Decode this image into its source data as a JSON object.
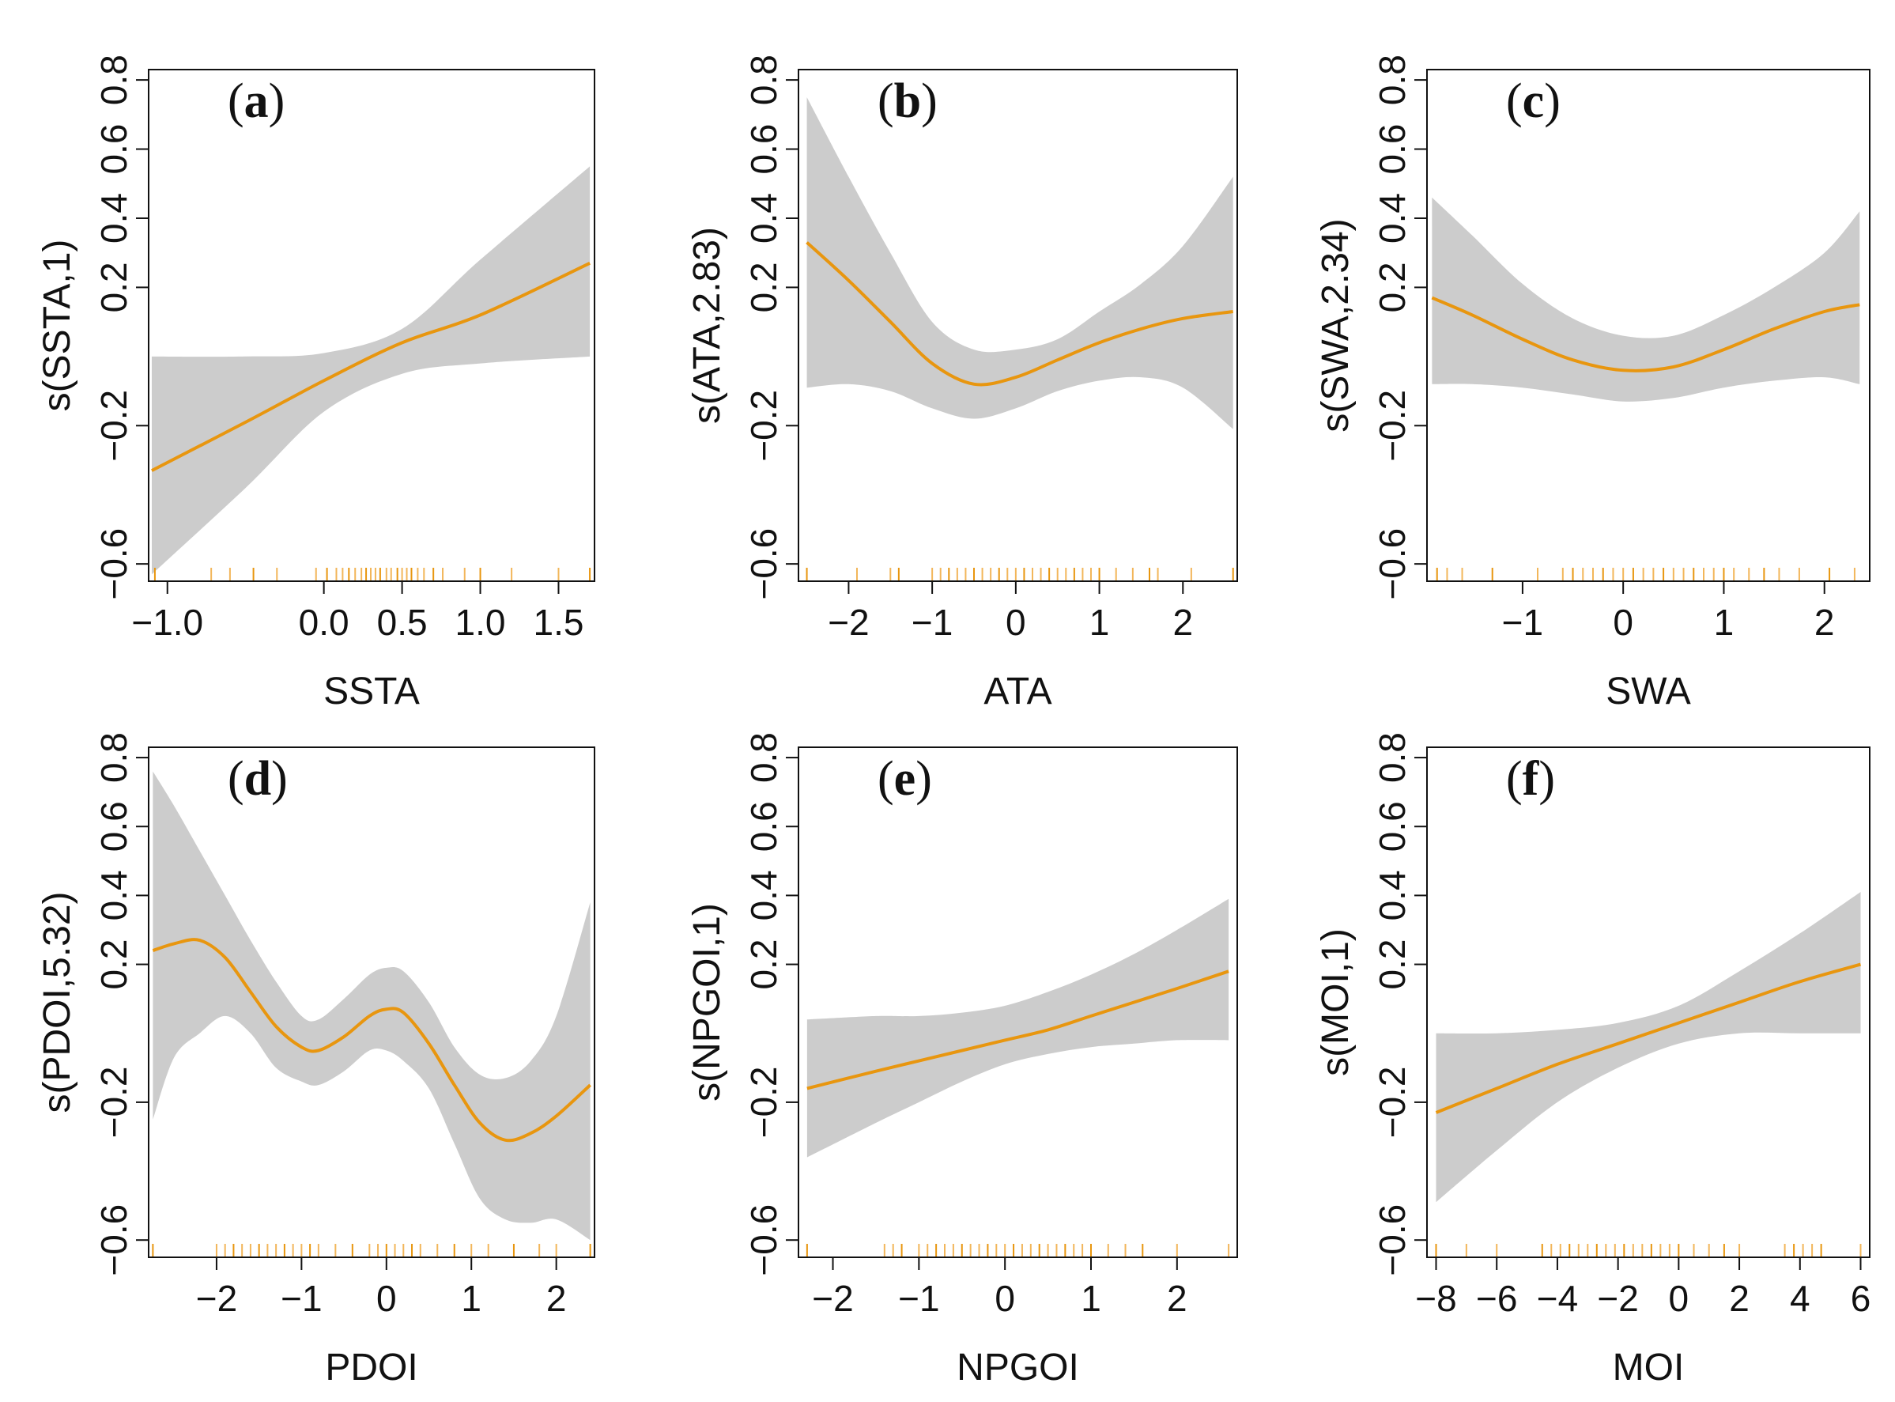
{
  "chart_data": [
    {
      "type": "line",
      "panel": "a",
      "xlabel": "SSTA",
      "ylabel": "s(SSTA,1)",
      "xlim": [
        -1.12,
        1.73
      ],
      "ylim": [
        -0.65,
        0.83
      ],
      "xticks": [
        -1.0,
        0.0,
        0.5,
        1.0,
        1.5
      ],
      "xtick_labels": [
        "−1.0",
        "0.0",
        "0.5",
        "1.0",
        "1.5"
      ],
      "yticks": [
        -0.6,
        -0.2,
        0.2,
        0.4,
        0.6,
        0.8
      ],
      "ytick_labels": [
        "−0.6",
        "−0.2",
        "0.2",
        "0.4",
        "0.6",
        "0.8"
      ],
      "line_color": "#e8960f",
      "band_color": "#cccccc",
      "x": [
        -1.1,
        -0.5,
        0.0,
        0.5,
        1.0,
        1.7
      ],
      "fit": [
        -0.33,
        -0.19,
        -0.07,
        0.04,
        0.12,
        0.27
      ],
      "upper": [
        0.0,
        0.0,
        0.01,
        0.08,
        0.28,
        0.55
      ],
      "lower": [
        -0.63,
        -0.38,
        -0.16,
        -0.05,
        -0.02,
        0.0
      ],
      "rug": [
        -1.08,
        -0.72,
        -0.6,
        -0.45,
        -0.3,
        -0.05,
        0.02,
        0.08,
        0.12,
        0.16,
        0.2,
        0.24,
        0.27,
        0.3,
        0.33,
        0.36,
        0.4,
        0.43,
        0.47,
        0.5,
        0.53,
        0.56,
        0.6,
        0.64,
        0.7,
        0.76,
        0.9,
        1.0,
        1.2,
        1.5,
        1.7
      ]
    },
    {
      "type": "line",
      "panel": "b",
      "xlabel": "ATA",
      "ylabel": "s(ATA,2.83)",
      "xlim": [
        -2.6,
        2.65
      ],
      "ylim": [
        -0.65,
        0.83
      ],
      "xticks": [
        -2,
        -1,
        0,
        1,
        2
      ],
      "xtick_labels": [
        "−2",
        "−1",
        "0",
        "1",
        "2"
      ],
      "yticks": [
        -0.6,
        -0.2,
        0.2,
        0.4,
        0.6,
        0.8
      ],
      "ytick_labels": [
        "−0.6",
        "−0.2",
        "0.2",
        "0.4",
        "0.6",
        "0.8"
      ],
      "line_color": "#e8960f",
      "band_color": "#cccccc",
      "x": [
        -2.5,
        -2.0,
        -1.5,
        -1.0,
        -0.5,
        0.0,
        0.5,
        1.0,
        1.5,
        2.0,
        2.6
      ],
      "fit": [
        0.33,
        0.22,
        0.1,
        -0.02,
        -0.08,
        -0.06,
        -0.01,
        0.04,
        0.08,
        0.11,
        0.13
      ],
      "upper": [
        0.75,
        0.52,
        0.3,
        0.1,
        0.02,
        0.02,
        0.05,
        0.13,
        0.21,
        0.32,
        0.52
      ],
      "lower": [
        -0.09,
        -0.08,
        -0.1,
        -0.15,
        -0.18,
        -0.15,
        -0.1,
        -0.07,
        -0.06,
        -0.09,
        -0.21
      ],
      "rug": [
        -2.5,
        -1.9,
        -1.5,
        -1.4,
        -1.0,
        -0.9,
        -0.8,
        -0.7,
        -0.6,
        -0.5,
        -0.4,
        -0.3,
        -0.2,
        -0.1,
        0.0,
        0.1,
        0.2,
        0.3,
        0.4,
        0.5,
        0.6,
        0.7,
        0.8,
        0.9,
        1.0,
        1.2,
        1.4,
        1.6,
        1.7,
        2.1,
        2.6
      ]
    },
    {
      "type": "line",
      "panel": "c",
      "xlabel": "SWA",
      "ylabel": "s(SWA,2.34)",
      "xlim": [
        -1.95,
        2.45
      ],
      "ylim": [
        -0.65,
        0.83
      ],
      "xticks": [
        -1,
        0,
        1,
        2
      ],
      "xtick_labels": [
        "−1",
        "0",
        "1",
        "2"
      ],
      "yticks": [
        -0.6,
        -0.2,
        0.2,
        0.4,
        0.6,
        0.8
      ],
      "ytick_labels": [
        "−0.6",
        "−0.2",
        "0.2",
        "0.4",
        "0.6",
        "0.8"
      ],
      "line_color": "#e8960f",
      "band_color": "#cccccc",
      "x": [
        -1.9,
        -1.5,
        -1.0,
        -0.5,
        0.0,
        0.5,
        1.0,
        1.5,
        2.0,
        2.35
      ],
      "fit": [
        0.17,
        0.12,
        0.05,
        -0.01,
        -0.04,
        -0.03,
        0.02,
        0.08,
        0.13,
        0.15
      ],
      "upper": [
        0.46,
        0.35,
        0.21,
        0.11,
        0.06,
        0.06,
        0.12,
        0.2,
        0.3,
        0.42
      ],
      "lower": [
        -0.08,
        -0.08,
        -0.09,
        -0.11,
        -0.13,
        -0.12,
        -0.09,
        -0.07,
        -0.06,
        -0.08
      ],
      "rug": [
        -1.85,
        -1.75,
        -1.6,
        -1.3,
        -0.85,
        -0.6,
        -0.5,
        -0.4,
        -0.3,
        -0.2,
        -0.1,
        0.0,
        0.1,
        0.2,
        0.3,
        0.4,
        0.5,
        0.6,
        0.7,
        0.8,
        0.9,
        1.0,
        1.1,
        1.25,
        1.4,
        1.55,
        1.75,
        2.05,
        2.3
      ]
    },
    {
      "type": "line",
      "panel": "d",
      "xlabel": "PDOI",
      "ylabel": "s(PDOI,5.32)",
      "xlim": [
        -2.8,
        2.45
      ],
      "ylim": [
        -0.65,
        0.83
      ],
      "xticks": [
        -2,
        -1,
        0,
        1,
        2
      ],
      "xtick_labels": [
        "−2",
        "−1",
        "0",
        "1",
        "2"
      ],
      "yticks": [
        -0.6,
        -0.2,
        0.2,
        0.4,
        0.6,
        0.8
      ],
      "ytick_labels": [
        "−0.6",
        "−0.2",
        "0.2",
        "0.4",
        "0.6",
        "0.8"
      ],
      "line_color": "#e8960f",
      "band_color": "#cccccc",
      "x": [
        -2.75,
        -2.5,
        -2.2,
        -1.9,
        -1.6,
        -1.3,
        -1.0,
        -0.8,
        -0.5,
        -0.2,
        0.0,
        0.2,
        0.5,
        0.8,
        1.1,
        1.4,
        1.7,
        2.0,
        2.4
      ],
      "fit": [
        0.24,
        0.26,
        0.27,
        0.22,
        0.12,
        0.02,
        -0.04,
        -0.05,
        -0.01,
        0.05,
        0.07,
        0.06,
        -0.03,
        -0.15,
        -0.26,
        -0.31,
        -0.29,
        -0.24,
        -0.15
      ],
      "upper": [
        0.76,
        0.66,
        0.53,
        0.4,
        0.27,
        0.15,
        0.05,
        0.04,
        0.1,
        0.17,
        0.19,
        0.18,
        0.09,
        -0.04,
        -0.12,
        -0.13,
        -0.08,
        0.05,
        0.38
      ],
      "lower": [
        -0.25,
        -0.07,
        0.0,
        0.05,
        0.0,
        -0.1,
        -0.14,
        -0.15,
        -0.11,
        -0.05,
        -0.05,
        -0.08,
        -0.16,
        -0.32,
        -0.48,
        -0.54,
        -0.55,
        -0.54,
        -0.6
      ],
      "rug": [
        -2.75,
        -2.0,
        -1.9,
        -1.8,
        -1.7,
        -1.6,
        -1.5,
        -1.4,
        -1.3,
        -1.2,
        -1.1,
        -1.0,
        -0.9,
        -0.8,
        -0.6,
        -0.4,
        -0.2,
        -0.1,
        0.0,
        0.1,
        0.2,
        0.3,
        0.4,
        0.6,
        0.8,
        1.0,
        1.2,
        1.5,
        1.8,
        2.0,
        2.4
      ]
    },
    {
      "type": "line",
      "panel": "e",
      "xlabel": "NPGOI",
      "ylabel": "s(NPGOI,1)",
      "xlim": [
        -2.4,
        2.7
      ],
      "ylim": [
        -0.65,
        0.83
      ],
      "xticks": [
        -2,
        -1,
        0,
        1,
        2
      ],
      "xtick_labels": [
        "−2",
        "−1",
        "0",
        "1",
        "2"
      ],
      "yticks": [
        -0.6,
        -0.2,
        0.2,
        0.4,
        0.6,
        0.8
      ],
      "ytick_labels": [
        "−0.6",
        "−0.2",
        "0.2",
        "0.4",
        "0.6",
        "0.8"
      ],
      "line_color": "#e8960f",
      "band_color": "#cccccc",
      "x": [
        -2.3,
        -1.5,
        -1.0,
        -0.5,
        0.0,
        0.5,
        1.0,
        1.5,
        2.0,
        2.6
      ],
      "fit": [
        -0.16,
        -0.11,
        -0.08,
        -0.05,
        -0.02,
        0.01,
        0.05,
        0.09,
        0.13,
        0.18
      ],
      "upper": [
        0.04,
        0.05,
        0.05,
        0.06,
        0.08,
        0.12,
        0.17,
        0.23,
        0.3,
        0.39
      ],
      "lower": [
        -0.36,
        -0.26,
        -0.2,
        -0.14,
        -0.09,
        -0.06,
        -0.04,
        -0.03,
        -0.02,
        -0.02
      ],
      "rug": [
        -2.3,
        -1.4,
        -1.3,
        -1.2,
        -1.0,
        -0.9,
        -0.8,
        -0.7,
        -0.6,
        -0.5,
        -0.4,
        -0.3,
        -0.2,
        -0.1,
        0.0,
        0.1,
        0.2,
        0.3,
        0.4,
        0.5,
        0.6,
        0.7,
        0.8,
        0.9,
        1.0,
        1.2,
        1.4,
        1.6,
        2.0,
        2.6
      ]
    },
    {
      "type": "line",
      "panel": "f",
      "xlabel": "MOI",
      "ylabel": "s(MOI,1)",
      "xlim": [
        -8.3,
        6.3
      ],
      "ylim": [
        -0.65,
        0.83
      ],
      "xticks": [
        -8,
        -6,
        -4,
        -2,
        0,
        2,
        4,
        6
      ],
      "xtick_labels": [
        "−8",
        "−6",
        "−4",
        "−2",
        "0",
        "2",
        "4",
        "6"
      ],
      "yticks": [
        -0.6,
        -0.2,
        0.2,
        0.4,
        0.6,
        0.8
      ],
      "ytick_labels": [
        "−0.6",
        "−0.2",
        "0.2",
        "0.4",
        "0.6",
        "0.8"
      ],
      "line_color": "#e8960f",
      "band_color": "#cccccc",
      "x": [
        -8.0,
        -6.0,
        -4.0,
        -2.0,
        0.0,
        2.0,
        4.0,
        6.0
      ],
      "fit": [
        -0.23,
        -0.16,
        -0.09,
        -0.03,
        0.03,
        0.09,
        0.15,
        0.2
      ],
      "upper": [
        0.0,
        0.0,
        0.01,
        0.03,
        0.08,
        0.18,
        0.29,
        0.41
      ],
      "lower": [
        -0.49,
        -0.34,
        -0.2,
        -0.1,
        -0.03,
        0.0,
        0.0,
        0.0
      ],
      "rug": [
        -8.0,
        -7.0,
        -6.0,
        -4.5,
        -4.2,
        -3.9,
        -3.6,
        -3.3,
        -3.0,
        -2.7,
        -2.4,
        -2.1,
        -1.8,
        -1.5,
        -1.2,
        -0.9,
        -0.6,
        -0.3,
        0.0,
        0.5,
        1.0,
        1.5,
        2.0,
        3.5,
        3.8,
        4.1,
        4.4,
        4.7,
        6.0
      ]
    }
  ]
}
